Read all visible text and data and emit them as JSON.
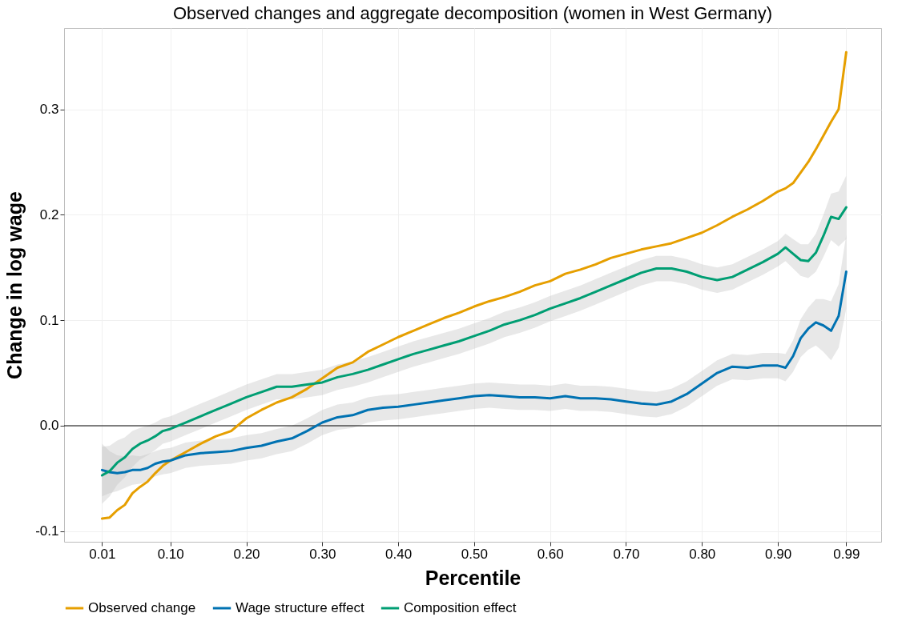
{
  "chart_data": {
    "type": "line",
    "title": "Observed changes and aggregate decomposition (women in West Germany)",
    "xlabel": "Percentile",
    "ylabel": "Change in log wage",
    "x": [
      0.01,
      0.02,
      0.03,
      0.04,
      0.05,
      0.06,
      0.07,
      0.08,
      0.09,
      0.1,
      0.12,
      0.14,
      0.16,
      0.18,
      0.2,
      0.22,
      0.24,
      0.26,
      0.28,
      0.3,
      0.32,
      0.34,
      0.36,
      0.38,
      0.4,
      0.42,
      0.44,
      0.46,
      0.48,
      0.5,
      0.52,
      0.54,
      0.56,
      0.58,
      0.6,
      0.62,
      0.64,
      0.66,
      0.68,
      0.7,
      0.72,
      0.74,
      0.76,
      0.78,
      0.8,
      0.82,
      0.84,
      0.86,
      0.88,
      0.9,
      0.91,
      0.92,
      0.93,
      0.94,
      0.95,
      0.96,
      0.97,
      0.98,
      0.99
    ],
    "series": [
      {
        "name": "Observed change",
        "color": "#e69f00",
        "values": [
          -0.088,
          -0.087,
          -0.08,
          -0.075,
          -0.064,
          -0.058,
          -0.053,
          -0.045,
          -0.038,
          -0.033,
          -0.025,
          -0.017,
          -0.01,
          -0.005,
          0.007,
          0.015,
          0.022,
          0.027,
          0.035,
          0.045,
          0.055,
          0.06,
          0.07,
          0.077,
          0.084,
          0.09,
          0.096,
          0.102,
          0.107,
          0.113,
          0.118,
          0.122,
          0.127,
          0.133,
          0.137,
          0.144,
          0.148,
          0.153,
          0.159,
          0.163,
          0.167,
          0.17,
          0.173,
          0.178,
          0.183,
          0.19,
          0.198,
          0.205,
          0.213,
          0.222,
          0.225,
          0.23,
          0.24,
          0.25,
          0.262,
          0.275,
          0.288,
          0.3,
          0.354
        ]
      },
      {
        "name": "Wage structure effect",
        "color": "#0072b2",
        "values": [
          -0.042,
          -0.044,
          -0.045,
          -0.044,
          -0.042,
          -0.042,
          -0.04,
          -0.036,
          -0.034,
          -0.033,
          -0.028,
          -0.026,
          -0.025,
          -0.024,
          -0.021,
          -0.019,
          -0.015,
          -0.012,
          -0.005,
          0.003,
          0.008,
          0.01,
          0.015,
          0.017,
          0.018,
          0.02,
          0.022,
          0.024,
          0.026,
          0.028,
          0.029,
          0.028,
          0.027,
          0.027,
          0.026,
          0.028,
          0.026,
          0.026,
          0.025,
          0.023,
          0.021,
          0.02,
          0.023,
          0.03,
          0.04,
          0.05,
          0.056,
          0.055,
          0.057,
          0.057,
          0.055,
          0.066,
          0.083,
          0.092,
          0.098,
          0.095,
          0.09,
          0.104,
          0.146
        ],
        "lower": [
          -0.067,
          -0.064,
          -0.062,
          -0.059,
          -0.056,
          -0.055,
          -0.053,
          -0.048,
          -0.046,
          -0.045,
          -0.04,
          -0.038,
          -0.037,
          -0.036,
          -0.033,
          -0.031,
          -0.027,
          -0.024,
          -0.017,
          -0.009,
          -0.004,
          -0.002,
          0.003,
          0.005,
          0.006,
          0.008,
          0.01,
          0.012,
          0.014,
          0.016,
          0.017,
          0.016,
          0.015,
          0.015,
          0.014,
          0.016,
          0.014,
          0.014,
          0.013,
          0.011,
          0.009,
          0.008,
          0.011,
          0.018,
          0.028,
          0.038,
          0.044,
          0.043,
          0.045,
          0.045,
          0.042,
          0.051,
          0.065,
          0.072,
          0.076,
          0.07,
          0.062,
          0.074,
          0.111
        ],
        "upper": [
          -0.017,
          -0.024,
          -0.028,
          -0.029,
          -0.028,
          -0.029,
          -0.027,
          -0.024,
          -0.022,
          -0.021,
          -0.016,
          -0.014,
          -0.013,
          -0.012,
          -0.009,
          -0.007,
          -0.003,
          0.0,
          0.007,
          0.015,
          0.02,
          0.022,
          0.027,
          0.029,
          0.03,
          0.032,
          0.034,
          0.036,
          0.038,
          0.04,
          0.041,
          0.04,
          0.039,
          0.039,
          0.038,
          0.04,
          0.038,
          0.038,
          0.037,
          0.035,
          0.033,
          0.032,
          0.035,
          0.042,
          0.052,
          0.062,
          0.068,
          0.067,
          0.069,
          0.069,
          0.068,
          0.081,
          0.101,
          0.112,
          0.12,
          0.12,
          0.118,
          0.134,
          0.181
        ]
      },
      {
        "name": "Composition effect",
        "color": "#009e73",
        "values": [
          -0.047,
          -0.043,
          -0.035,
          -0.03,
          -0.022,
          -0.017,
          -0.014,
          -0.01,
          -0.005,
          -0.003,
          0.003,
          0.009,
          0.015,
          0.021,
          0.027,
          0.032,
          0.037,
          0.037,
          0.039,
          0.041,
          0.046,
          0.049,
          0.053,
          0.058,
          0.063,
          0.068,
          0.072,
          0.076,
          0.08,
          0.085,
          0.09,
          0.096,
          0.1,
          0.105,
          0.111,
          0.116,
          0.121,
          0.127,
          0.133,
          0.139,
          0.145,
          0.149,
          0.149,
          0.146,
          0.141,
          0.138,
          0.141,
          0.148,
          0.155,
          0.163,
          0.169,
          0.163,
          0.157,
          0.156,
          0.164,
          0.18,
          0.198,
          0.196,
          0.207
        ],
        "lower": [
          -0.074,
          -0.067,
          -0.056,
          -0.049,
          -0.039,
          -0.032,
          -0.028,
          -0.023,
          -0.017,
          -0.015,
          -0.009,
          -0.003,
          0.003,
          0.009,
          0.015,
          0.02,
          0.025,
          0.025,
          0.027,
          0.029,
          0.034,
          0.037,
          0.041,
          0.046,
          0.051,
          0.056,
          0.06,
          0.064,
          0.068,
          0.073,
          0.078,
          0.084,
          0.088,
          0.093,
          0.099,
          0.104,
          0.109,
          0.115,
          0.121,
          0.127,
          0.133,
          0.137,
          0.137,
          0.134,
          0.129,
          0.126,
          0.129,
          0.136,
          0.143,
          0.151,
          0.156,
          0.149,
          0.142,
          0.14,
          0.146,
          0.16,
          0.176,
          0.17,
          0.177
        ],
        "upper": [
          -0.02,
          -0.019,
          -0.014,
          -0.011,
          -0.005,
          -0.002,
          0.0,
          0.003,
          0.007,
          0.009,
          0.015,
          0.021,
          0.027,
          0.033,
          0.039,
          0.044,
          0.049,
          0.049,
          0.051,
          0.053,
          0.058,
          0.061,
          0.065,
          0.07,
          0.075,
          0.08,
          0.084,
          0.088,
          0.092,
          0.097,
          0.102,
          0.108,
          0.112,
          0.117,
          0.123,
          0.128,
          0.133,
          0.139,
          0.145,
          0.151,
          0.157,
          0.161,
          0.161,
          0.158,
          0.153,
          0.15,
          0.153,
          0.16,
          0.167,
          0.175,
          0.182,
          0.177,
          0.172,
          0.172,
          0.182,
          0.2,
          0.22,
          0.222,
          0.237
        ]
      }
    ],
    "xlim": [
      -0.04,
      1.036
    ],
    "ylim": [
      -0.11,
      0.377
    ],
    "xticks": [
      {
        "value": 0.01,
        "label": "0.01"
      },
      {
        "value": 0.1,
        "label": "0.10"
      },
      {
        "value": 0.2,
        "label": "0.20"
      },
      {
        "value": 0.3,
        "label": "0.30"
      },
      {
        "value": 0.4,
        "label": "0.40"
      },
      {
        "value": 0.5,
        "label": "0.50"
      },
      {
        "value": 0.6,
        "label": "0.60"
      },
      {
        "value": 0.7,
        "label": "0.70"
      },
      {
        "value": 0.8,
        "label": "0.80"
      },
      {
        "value": 0.9,
        "label": "0.90"
      },
      {
        "value": 0.99,
        "label": "0.99"
      }
    ],
    "yticks": [
      -0.1,
      {
        "value": 0,
        "label": "0.0"
      },
      0.1,
      0.2,
      0.3
    ],
    "ref_lines": [
      {
        "axis": "y",
        "value": 0,
        "color": "#000000"
      }
    ],
    "grid": true,
    "legend": "bottom",
    "line_style": "solid"
  }
}
